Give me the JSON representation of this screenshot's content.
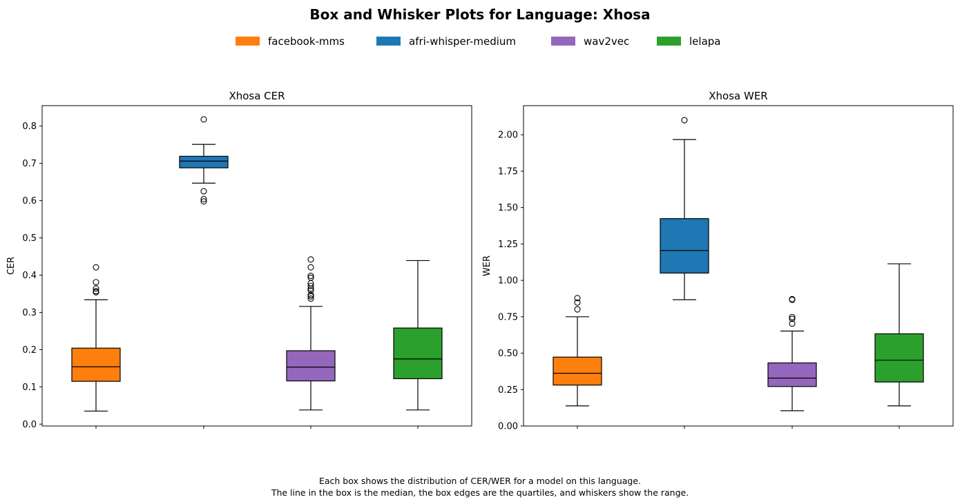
{
  "title": "Box and Whisker Plots for Language: Xhosa",
  "legend": {
    "placement": "top-center",
    "items": [
      {
        "label": "facebook-mms",
        "color": "#ff7f0e"
      },
      {
        "label": "afri-whisper-medium",
        "color": "#1f77b4"
      },
      {
        "label": "wav2vec",
        "color": "#9467bd"
      },
      {
        "label": "lelapa",
        "color": "#2ca02c"
      }
    ]
  },
  "caption": {
    "line1": "Each box shows the distribution of CER/WER for a model on this language.",
    "line2": "The line in the box is the median, the box edges are the quartiles, and whiskers show the range."
  },
  "chart_data": [
    {
      "type": "box",
      "title": "Xhosa CER",
      "xlabel": "",
      "ylabel": "CER",
      "ylim": [
        -0.005,
        0.855
      ],
      "yticks": [
        0.0,
        0.1,
        0.2,
        0.3,
        0.4,
        0.5,
        0.6,
        0.7,
        0.8
      ],
      "ytick_labels": [
        "0.0",
        "0.1",
        "0.2",
        "0.3",
        "0.4",
        "0.5",
        "0.6",
        "0.7",
        "0.8"
      ],
      "grid": false,
      "series": [
        {
          "model": "facebook-mms",
          "color": "#ff7f0e",
          "whisker_low": 0.035,
          "q1": 0.115,
          "median": 0.154,
          "q3": 0.204,
          "whisker_high": 0.334,
          "outliers": [
            0.354,
            0.357,
            0.364,
            0.381,
            0.421
          ]
        },
        {
          "model": "afri-whisper-medium",
          "color": "#1f77b4",
          "whisker_low": 0.647,
          "q1": 0.688,
          "median": 0.706,
          "q3": 0.719,
          "whisker_high": 0.751,
          "outliers": [
            0.598,
            0.604,
            0.625,
            0.818
          ]
        },
        {
          "model": "wav2vec",
          "color": "#9467bd",
          "whisker_low": 0.038,
          "q1": 0.116,
          "median": 0.153,
          "q3": 0.197,
          "whisker_high": 0.316,
          "outliers": [
            0.337,
            0.343,
            0.347,
            0.359,
            0.364,
            0.371,
            0.378,
            0.393,
            0.398,
            0.421,
            0.442
          ]
        },
        {
          "model": "lelapa",
          "color": "#2ca02c",
          "whisker_low": 0.038,
          "q1": 0.122,
          "median": 0.175,
          "q3": 0.258,
          "whisker_high": 0.439,
          "outliers": []
        }
      ]
    },
    {
      "type": "box",
      "title": "Xhosa WER",
      "xlabel": "",
      "ylabel": "WER",
      "ylim": [
        0.0,
        2.2
      ],
      "yticks": [
        0.0,
        0.25,
        0.5,
        0.75,
        1.0,
        1.25,
        1.5,
        1.75,
        2.0
      ],
      "ytick_labels": [
        "0.00",
        "0.25",
        "0.50",
        "0.75",
        "1.00",
        "1.25",
        "1.50",
        "1.75",
        "2.00"
      ],
      "grid": false,
      "series": [
        {
          "model": "facebook-mms",
          "color": "#ff7f0e",
          "whisker_low": 0.138,
          "q1": 0.281,
          "median": 0.362,
          "q3": 0.473,
          "whisker_high": 0.75,
          "outliers": [
            0.801,
            0.848,
            0.878
          ]
        },
        {
          "model": "afri-whisper-medium",
          "color": "#1f77b4",
          "whisker_low": 0.867,
          "q1": 1.05,
          "median": 1.205,
          "q3": 1.424,
          "whisker_high": 1.967,
          "outliers": [
            2.1
          ]
        },
        {
          "model": "wav2vec",
          "color": "#9467bd",
          "whisker_low": 0.105,
          "q1": 0.271,
          "median": 0.329,
          "q3": 0.433,
          "whisker_high": 0.652,
          "outliers": [
            0.703,
            0.736,
            0.748,
            0.867,
            0.871
          ]
        },
        {
          "model": "lelapa",
          "color": "#2ca02c",
          "whisker_low": 0.138,
          "q1": 0.302,
          "median": 0.452,
          "q3": 0.633,
          "whisker_high": 1.114,
          "outliers": []
        }
      ]
    }
  ]
}
